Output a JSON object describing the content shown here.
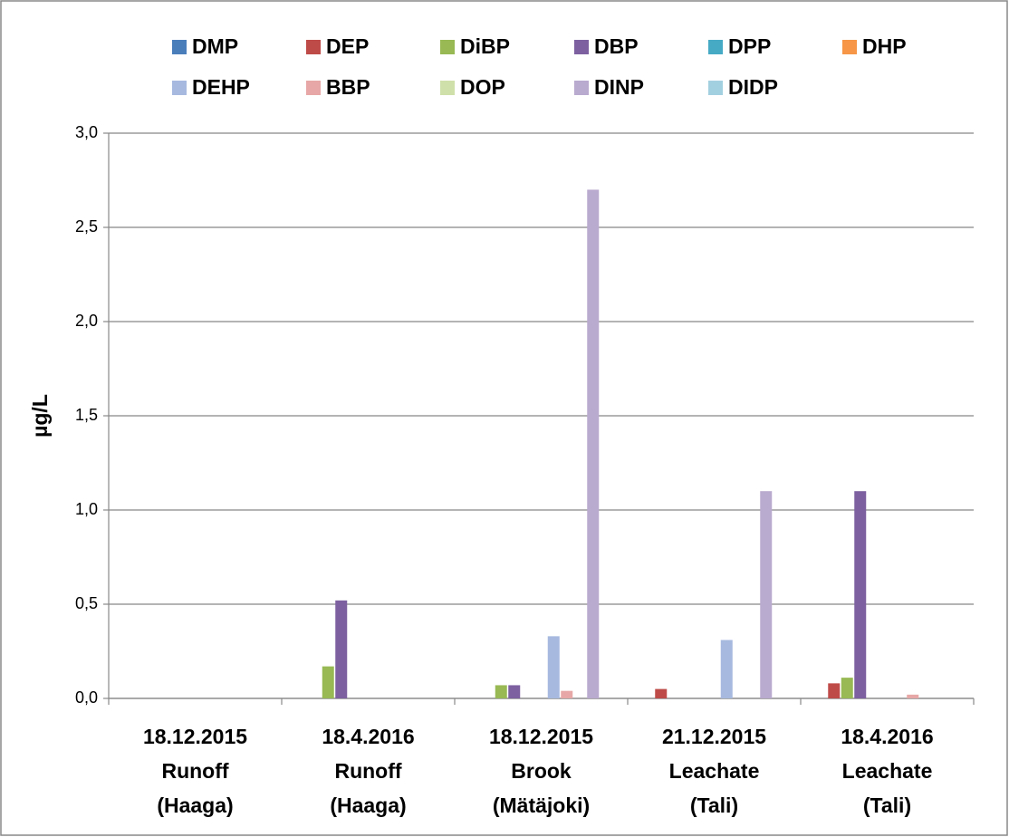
{
  "chart_data": {
    "type": "bar",
    "y_label": "µg/L",
    "categories": [
      [
        "18.12.2015",
        "Runoff",
        "(Haaga)"
      ],
      [
        "18.4.2016",
        "Runoff",
        "(Haaga)"
      ],
      [
        "18.12.2015",
        "Brook",
        "(Mätäjoki)"
      ],
      [
        "21.12.2015",
        "Leachate",
        "(Tali)"
      ],
      [
        "18.4.2016",
        "Leachate",
        "(Tali)"
      ]
    ],
    "series": [
      {
        "name": "DMP",
        "color": "#4a7ebb",
        "values": [
          0,
          0,
          0,
          0,
          0
        ]
      },
      {
        "name": "DEP",
        "color": "#be4b48",
        "values": [
          0,
          0,
          0,
          0.05,
          0.08
        ]
      },
      {
        "name": "DiBP",
        "color": "#98b954",
        "values": [
          0,
          0.17,
          0.07,
          0,
          0.11
        ]
      },
      {
        "name": "DBP",
        "color": "#7d60a0",
        "values": [
          0,
          0.52,
          0.07,
          0,
          1.1
        ]
      },
      {
        "name": "DPP",
        "color": "#46aac5",
        "values": [
          0,
          0,
          0,
          0,
          0
        ]
      },
      {
        "name": "DHP",
        "color": "#f79646",
        "values": [
          0,
          0,
          0,
          0,
          0
        ]
      },
      {
        "name": "DEHP",
        "color": "#a7b9df",
        "values": [
          0,
          0,
          0.33,
          0.31,
          0
        ]
      },
      {
        "name": "BBP",
        "color": "#e6a7a6",
        "values": [
          0,
          0,
          0.04,
          0,
          0.02
        ]
      },
      {
        "name": "DOP",
        "color": "#d0e0aa",
        "values": [
          0,
          0,
          0,
          0,
          0
        ]
      },
      {
        "name": "DINP",
        "color": "#b9aacf",
        "values": [
          0,
          0,
          2.7,
          1.1,
          0
        ]
      },
      {
        "name": "DIDP",
        "color": "#a3d0e0",
        "values": [
          0,
          0,
          0,
          0,
          0
        ]
      }
    ],
    "ylim": [
      0,
      3
    ],
    "yticks": [
      {
        "value": 0,
        "label": "0,0"
      },
      {
        "value": 0.5,
        "label": "0,5"
      },
      {
        "value": 1,
        "label": "1,0"
      },
      {
        "value": 1.5,
        "label": "1,5"
      },
      {
        "value": 2,
        "label": "2,0"
      },
      {
        "value": 2.5,
        "label": "2,5"
      },
      {
        "value": 3,
        "label": "3,0"
      }
    ],
    "grid": true,
    "legend": "top"
  }
}
